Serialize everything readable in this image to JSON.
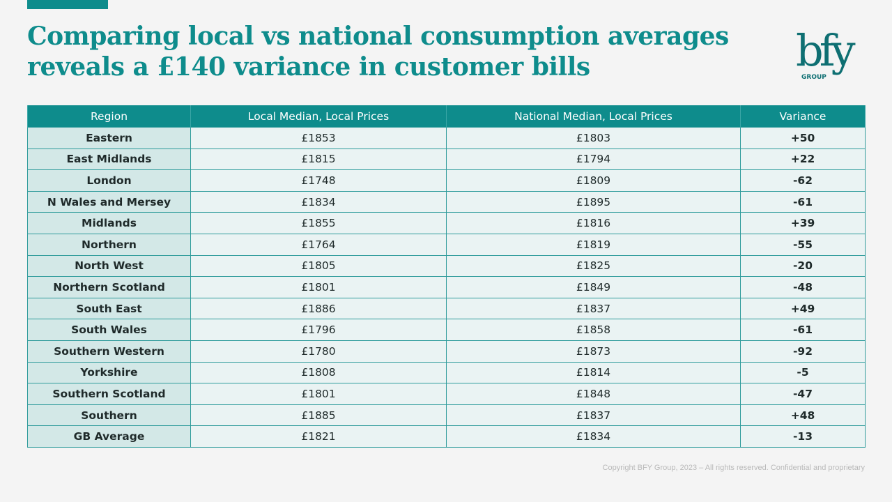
{
  "slide": {
    "title": "Comparing local vs national consumption averages reveals a £140 variance in customer bills",
    "footer": "Copyright BFY Group, 2023 – All rights reserved. Confidential and proprietary",
    "accent_color": "#0e8c8c",
    "logo": {
      "wordmark": "bfy",
      "sub": "GROUP",
      "icon": "bfy-group-logo"
    }
  },
  "table": {
    "headers": [
      "Region",
      "Local Median, Local Prices",
      "National Median, Local Prices",
      "Variance"
    ],
    "rows": [
      {
        "region": "Eastern",
        "local": "£1853",
        "national": "£1803",
        "variance": "+50"
      },
      {
        "region": "East Midlands",
        "local": "£1815",
        "national": "£1794",
        "variance": "+22"
      },
      {
        "region": "London",
        "local": "£1748",
        "national": "£1809",
        "variance": "-62"
      },
      {
        "region": "N Wales and Mersey",
        "local": "£1834",
        "national": "£1895",
        "variance": "-61"
      },
      {
        "region": "Midlands",
        "local": "£1855",
        "national": "£1816",
        "variance": "+39"
      },
      {
        "region": "Northern",
        "local": "£1764",
        "national": "£1819",
        "variance": "-55"
      },
      {
        "region": "North West",
        "local": "£1805",
        "national": "£1825",
        "variance": "-20"
      },
      {
        "region": "Northern Scotland",
        "local": "£1801",
        "national": "£1849",
        "variance": "-48"
      },
      {
        "region": "South East",
        "local": "£1886",
        "national": "£1837",
        "variance": "+49"
      },
      {
        "region": "South Wales",
        "local": "£1796",
        "national": "£1858",
        "variance": "-61"
      },
      {
        "region": "Southern Western",
        "local": "£1780",
        "national": "£1873",
        "variance": "-92"
      },
      {
        "region": "Yorkshire",
        "local": "£1808",
        "national": "£1814",
        "variance": "-5"
      },
      {
        "region": "Southern Scotland",
        "local": "£1801",
        "national": "£1848",
        "variance": "-47"
      },
      {
        "region": "Southern",
        "local": "£1885",
        "national": "£1837",
        "variance": "+48"
      },
      {
        "region": "GB Average",
        "local": "£1821",
        "national": "£1834",
        "variance": "-13"
      }
    ]
  }
}
